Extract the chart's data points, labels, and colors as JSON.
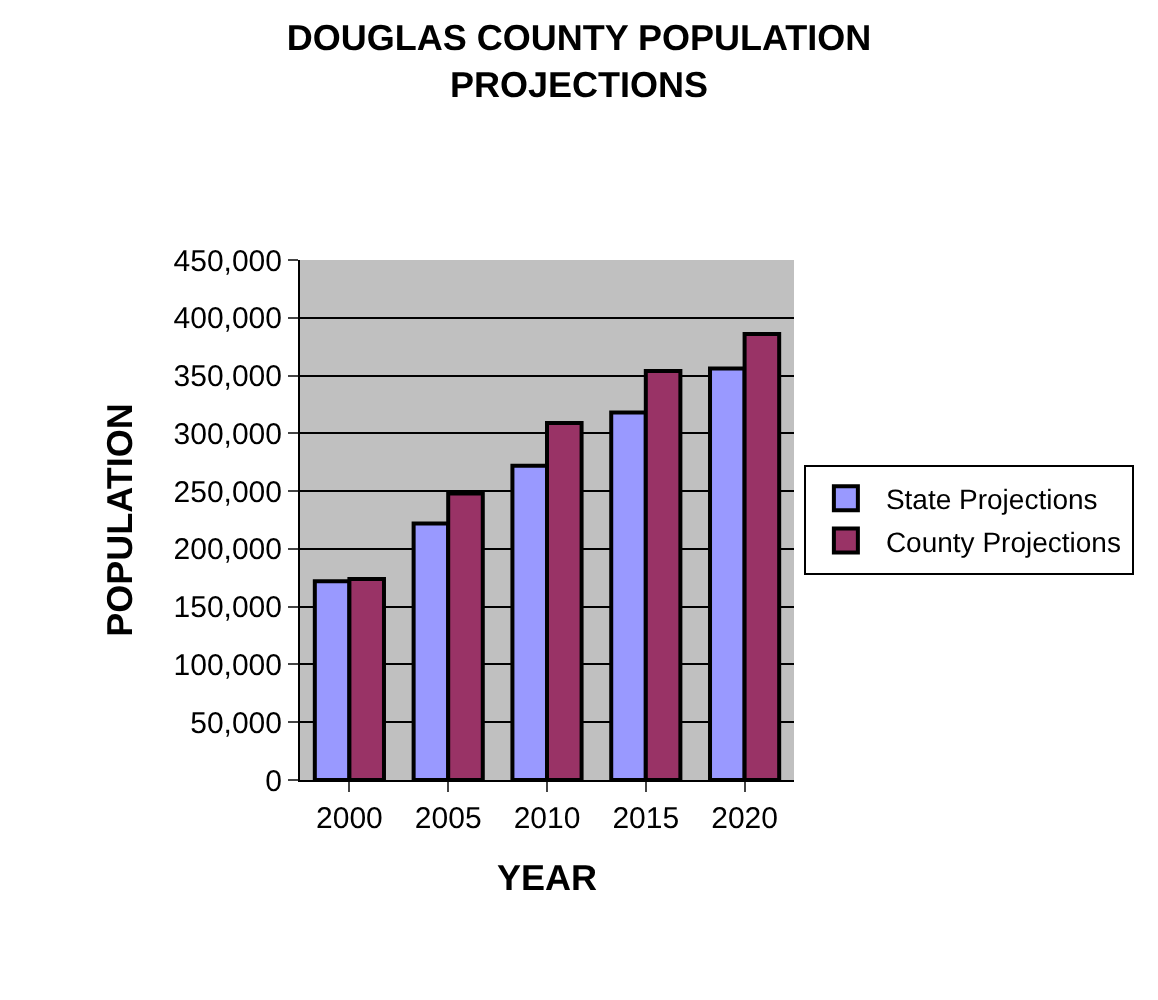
{
  "chart_data": {
    "type": "bar",
    "title": "DOUGLAS COUNTY POPULATION PROJECTIONS",
    "xlabel": "YEAR",
    "ylabel": "POPULATION",
    "categories": [
      "2000",
      "2005",
      "2010",
      "2015",
      "2020"
    ],
    "series": [
      {
        "name": "State Projections",
        "color": "#9999ff",
        "values": [
          172000,
          222000,
          272000,
          318000,
          356000
        ]
      },
      {
        "name": "County Projections",
        "color": "#993366",
        "values": [
          174000,
          248000,
          309000,
          354000,
          386000
        ]
      }
    ],
    "ylim": [
      0,
      450000
    ],
    "yticks": [
      {
        "value": 0,
        "label": "0"
      },
      {
        "value": 50000,
        "label": "50,000"
      },
      {
        "value": 100000,
        "label": "100,000"
      },
      {
        "value": 150000,
        "label": "150,000"
      },
      {
        "value": 200000,
        "label": "200,000"
      },
      {
        "value": 250000,
        "label": "250,000"
      },
      {
        "value": 300000,
        "label": "300,000"
      },
      {
        "value": 350000,
        "label": "350,000"
      },
      {
        "value": 400000,
        "label": "400,000"
      },
      {
        "value": 450000,
        "label": "450,000"
      }
    ],
    "grid": "y",
    "legend": "right"
  }
}
